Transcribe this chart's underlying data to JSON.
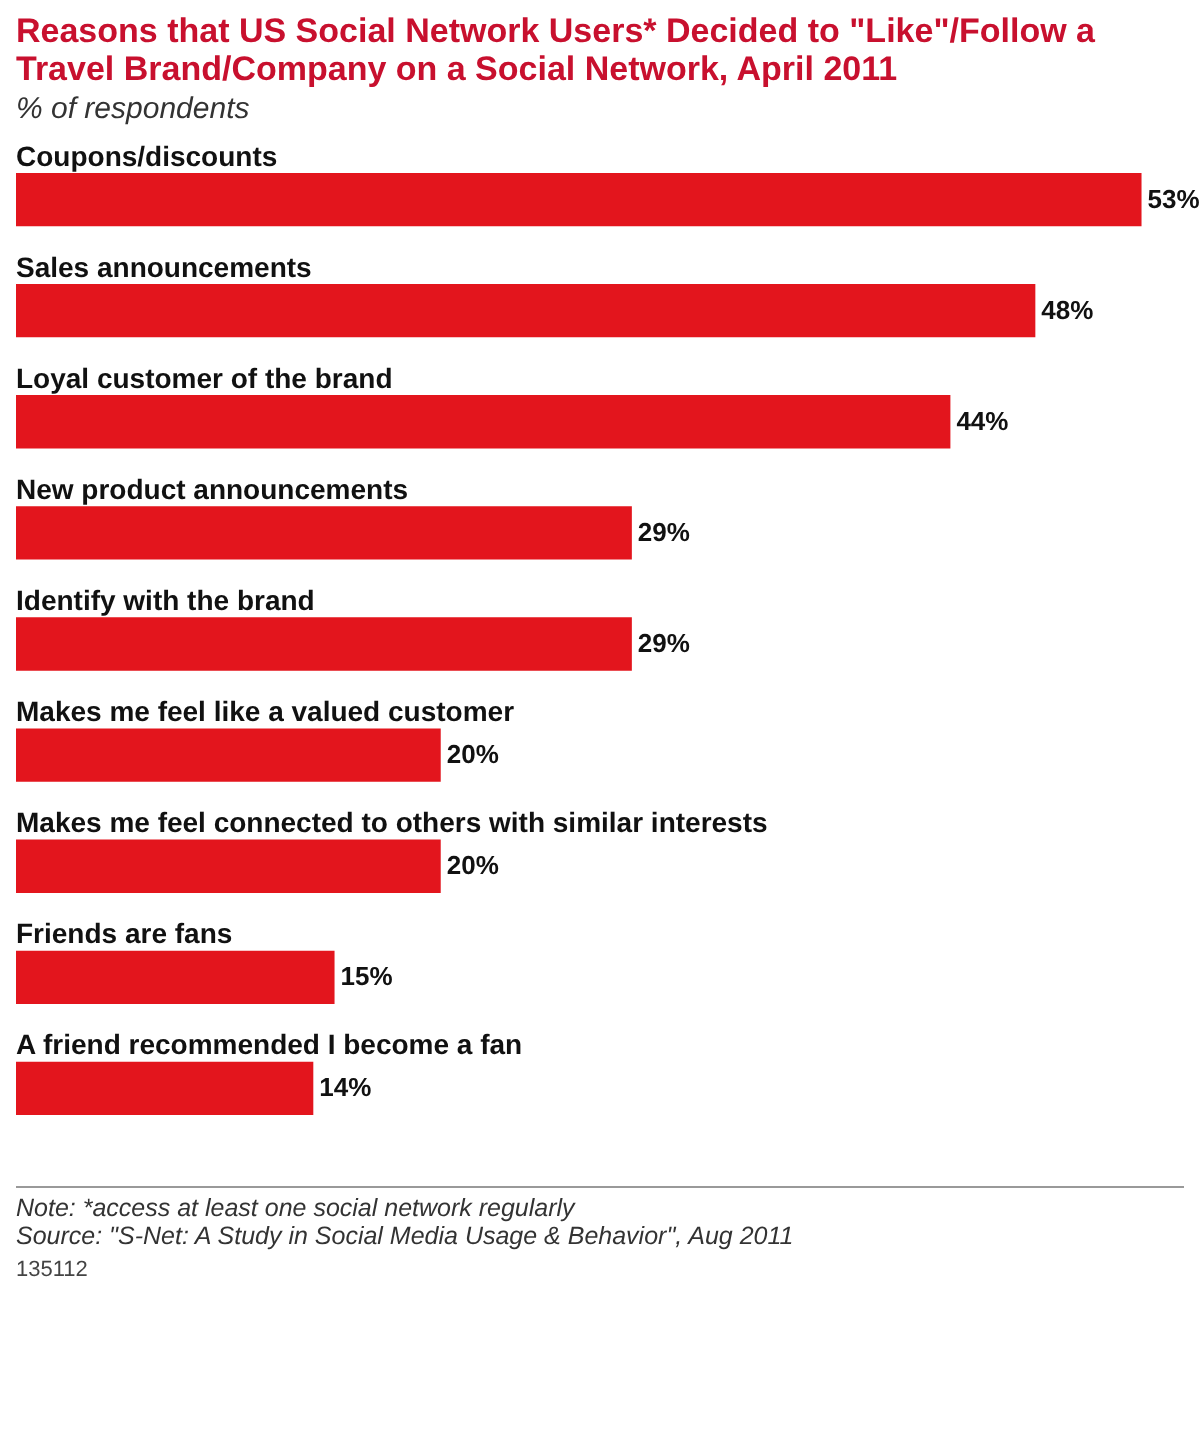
{
  "chart_data": {
    "type": "bar",
    "orientation": "horizontal",
    "title": "Reasons that US Social Network Users* Decided to \"Like\"/Follow a Travel Brand/Company on a Social Network, April 2011",
    "subtitle": "% of respondents",
    "categories": [
      "Coupons/discounts",
      "Sales announcements",
      "Loyal customer of the brand",
      "New product announcements",
      "Identify with the brand",
      "Makes me feel like a valued customer",
      "Makes me feel connected to others with similar interests",
      "Friends are fans",
      "A friend recommended I become a fan"
    ],
    "values": [
      53,
      48,
      44,
      29,
      29,
      20,
      20,
      15,
      14
    ],
    "value_labels": [
      "53%",
      "48%",
      "44%",
      "29%",
      "29%",
      "20%",
      "20%",
      "15%",
      "14%"
    ],
    "color": "#e3151d",
    "tick_labels": false,
    "annotations": [
      "Note: *access at least one social network regularly",
      "Source: \"S-Net: A Study in Social Media Usage & Behavior\", Aug 2011",
      "135112"
    ]
  }
}
